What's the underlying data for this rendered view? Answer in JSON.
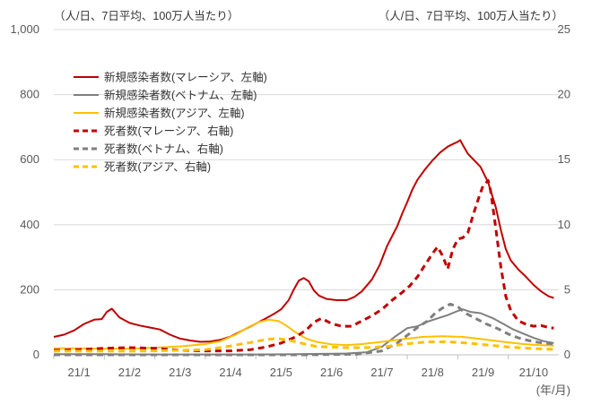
{
  "chart_data": {
    "type": "line",
    "title": "",
    "left_axis_unit": "（人/日、7日平均、100万人当たり）",
    "right_axis_unit": "（人/日、7日平均、100万人当たり）",
    "x_axis_unit": "(年/月)",
    "left_ylim": [
      0,
      1000
    ],
    "right_ylim": [
      0,
      25
    ],
    "left_ticks": [
      "0",
      "200",
      "400",
      "600",
      "800",
      "1,000"
    ],
    "left_tick_values": [
      0,
      200,
      400,
      600,
      800,
      1000
    ],
    "right_ticks": [
      "0",
      "5",
      "10",
      "15",
      "20",
      "25"
    ],
    "right_tick_values": [
      0,
      5,
      10,
      15,
      20,
      25
    ],
    "x_domain": [
      0,
      10
    ],
    "x_ticks": [
      "21/1",
      "21/2",
      "21/3",
      "21/4",
      "21/5",
      "21/6",
      "21/7",
      "21/8",
      "21/9",
      "21/10"
    ],
    "x_tick_values": [
      0,
      1,
      2,
      3,
      4,
      5,
      6,
      7,
      8,
      9
    ],
    "gridlines": true,
    "legend_position": "top-left",
    "series": [
      {
        "name": "新規感染者数(マレーシア、左軸)",
        "axis": "left",
        "color": "#C00000",
        "dash": "solid",
        "points": [
          [
            0,
            55
          ],
          [
            0.2,
            62
          ],
          [
            0.4,
            75
          ],
          [
            0.6,
            95
          ],
          [
            0.8,
            108
          ],
          [
            0.95,
            110
          ],
          [
            1.05,
            132
          ],
          [
            1.15,
            142
          ],
          [
            1.3,
            115
          ],
          [
            1.5,
            98
          ],
          [
            1.7,
            90
          ],
          [
            1.9,
            84
          ],
          [
            2.1,
            78
          ],
          [
            2.3,
            62
          ],
          [
            2.5,
            50
          ],
          [
            2.7,
            44
          ],
          [
            2.9,
            40
          ],
          [
            3.1,
            41
          ],
          [
            3.3,
            46
          ],
          [
            3.5,
            56
          ],
          [
            3.7,
            72
          ],
          [
            3.9,
            88
          ],
          [
            4.05,
            100
          ],
          [
            4.2,
            112
          ],
          [
            4.35,
            125
          ],
          [
            4.5,
            140
          ],
          [
            4.65,
            168
          ],
          [
            4.75,
            200
          ],
          [
            4.85,
            228
          ],
          [
            4.95,
            236
          ],
          [
            5.05,
            226
          ],
          [
            5.15,
            198
          ],
          [
            5.25,
            182
          ],
          [
            5.4,
            172
          ],
          [
            5.6,
            168
          ],
          [
            5.8,
            168
          ],
          [
            5.95,
            178
          ],
          [
            6.1,
            195
          ],
          [
            6.3,
            232
          ],
          [
            6.45,
            275
          ],
          [
            6.6,
            335
          ],
          [
            6.7,
            365
          ],
          [
            6.8,
            395
          ],
          [
            6.9,
            435
          ],
          [
            7.0,
            470
          ],
          [
            7.1,
            508
          ],
          [
            7.2,
            538
          ],
          [
            7.35,
            570
          ],
          [
            7.5,
            598
          ],
          [
            7.65,
            622
          ],
          [
            7.8,
            640
          ],
          [
            7.9,
            648
          ],
          [
            8.0,
            655
          ],
          [
            8.05,
            660
          ],
          [
            8.1,
            645
          ],
          [
            8.2,
            618
          ],
          [
            8.3,
            602
          ],
          [
            8.45,
            578
          ],
          [
            8.6,
            530
          ],
          [
            8.75,
            455
          ],
          [
            8.85,
            385
          ],
          [
            8.95,
            325
          ],
          [
            9.05,
            290
          ],
          [
            9.2,
            262
          ],
          [
            9.35,
            240
          ],
          [
            9.5,
            215
          ],
          [
            9.65,
            195
          ],
          [
            9.8,
            180
          ],
          [
            9.9,
            175
          ]
        ]
      },
      {
        "name": "新規感染者数(ベトナム、左軸)",
        "axis": "left",
        "color": "#7F7F7F",
        "dash": "solid",
        "points": [
          [
            0,
            2
          ],
          [
            1,
            2
          ],
          [
            2,
            1
          ],
          [
            3,
            1
          ],
          [
            4,
            1
          ],
          [
            4.8,
            2
          ],
          [
            5.3,
            3
          ],
          [
            5.8,
            4
          ],
          [
            6.2,
            8
          ],
          [
            6.5,
            25
          ],
          [
            6.75,
            55
          ],
          [
            7.0,
            82
          ],
          [
            7.2,
            88
          ],
          [
            7.4,
            102
          ],
          [
            7.6,
            112
          ],
          [
            7.8,
            122
          ],
          [
            8.0,
            135
          ],
          [
            8.1,
            140
          ],
          [
            8.25,
            132
          ],
          [
            8.45,
            128
          ],
          [
            8.7,
            112
          ],
          [
            8.9,
            95
          ],
          [
            9.1,
            78
          ],
          [
            9.3,
            65
          ],
          [
            9.5,
            52
          ],
          [
            9.7,
            42
          ],
          [
            9.9,
            36
          ]
        ]
      },
      {
        "name": "新規感染者数(アジア、左軸)",
        "axis": "left",
        "color": "#FFC000",
        "dash": "solid",
        "points": [
          [
            0,
            20
          ],
          [
            0.5,
            20
          ],
          [
            1,
            19
          ],
          [
            1.5,
            19
          ],
          [
            2,
            22
          ],
          [
            2.5,
            26
          ],
          [
            3,
            33
          ],
          [
            3.3,
            42
          ],
          [
            3.6,
            62
          ],
          [
            3.85,
            85
          ],
          [
            4.05,
            100
          ],
          [
            4.25,
            108
          ],
          [
            4.45,
            104
          ],
          [
            4.6,
            90
          ],
          [
            4.8,
            68
          ],
          [
            5.0,
            50
          ],
          [
            5.2,
            40
          ],
          [
            5.5,
            32
          ],
          [
            5.8,
            30
          ],
          [
            6.1,
            33
          ],
          [
            6.5,
            40
          ],
          [
            6.9,
            48
          ],
          [
            7.3,
            55
          ],
          [
            7.7,
            57
          ],
          [
            8.1,
            55
          ],
          [
            8.5,
            48
          ],
          [
            8.9,
            40
          ],
          [
            9.3,
            33
          ],
          [
            9.6,
            30
          ],
          [
            9.9,
            28
          ]
        ]
      },
      {
        "name": "死者数(マレーシア、右軸)",
        "axis": "right",
        "color": "#C00000",
        "dash": "dashed",
        "points": [
          [
            0,
            0.35
          ],
          [
            0.5,
            0.4
          ],
          [
            1,
            0.5
          ],
          [
            1.5,
            0.55
          ],
          [
            2,
            0.5
          ],
          [
            2.5,
            0.35
          ],
          [
            3,
            0.3
          ],
          [
            3.5,
            0.3
          ],
          [
            3.9,
            0.4
          ],
          [
            4.2,
            0.6
          ],
          [
            4.5,
            0.9
          ],
          [
            4.8,
            1.4
          ],
          [
            5.0,
            1.9
          ],
          [
            5.15,
            2.5
          ],
          [
            5.3,
            2.8
          ],
          [
            5.5,
            2.4
          ],
          [
            5.7,
            2.2
          ],
          [
            5.9,
            2.2
          ],
          [
            6.1,
            2.6
          ],
          [
            6.3,
            3.0
          ],
          [
            6.5,
            3.5
          ],
          [
            6.7,
            4.2
          ],
          [
            6.9,
            4.8
          ],
          [
            7.05,
            5.3
          ],
          [
            7.2,
            6.0
          ],
          [
            7.35,
            6.9
          ],
          [
            7.5,
            7.8
          ],
          [
            7.6,
            8.3
          ],
          [
            7.7,
            7.6
          ],
          [
            7.8,
            6.6
          ],
          [
            7.9,
            8.1
          ],
          [
            8.0,
            8.9
          ],
          [
            8.1,
            9.0
          ],
          [
            8.2,
            9.4
          ],
          [
            8.3,
            10.7
          ],
          [
            8.4,
            11.9
          ],
          [
            8.5,
            13.0
          ],
          [
            8.6,
            13.4
          ],
          [
            8.65,
            12.6
          ],
          [
            8.75,
            9.8
          ],
          [
            8.85,
            6.8
          ],
          [
            8.95,
            4.5
          ],
          [
            9.05,
            3.4
          ],
          [
            9.2,
            2.6
          ],
          [
            9.35,
            2.35
          ],
          [
            9.5,
            2.2
          ],
          [
            9.65,
            2.25
          ],
          [
            9.8,
            2.1
          ],
          [
            9.9,
            2.05
          ]
        ]
      },
      {
        "name": "死者数(ベトナム、右軸)",
        "axis": "right",
        "color": "#7F7F7F",
        "dash": "dashed",
        "points": [
          [
            0,
            0
          ],
          [
            2,
            0
          ],
          [
            4,
            0
          ],
          [
            5,
            0
          ],
          [
            6,
            0.05
          ],
          [
            6.5,
            0.3
          ],
          [
            6.8,
            0.9
          ],
          [
            7.0,
            1.5
          ],
          [
            7.2,
            2.1
          ],
          [
            7.4,
            2.6
          ],
          [
            7.55,
            3.2
          ],
          [
            7.7,
            3.6
          ],
          [
            7.85,
            3.9
          ],
          [
            8.0,
            3.7
          ],
          [
            8.15,
            3.2
          ],
          [
            8.35,
            2.8
          ],
          [
            8.55,
            2.4
          ],
          [
            8.8,
            2.0
          ],
          [
            9.0,
            1.6
          ],
          [
            9.2,
            1.3
          ],
          [
            9.4,
            1.1
          ],
          [
            9.6,
            0.95
          ],
          [
            9.9,
            0.85
          ]
        ]
      },
      {
        "name": "死者数(アジア、右軸)",
        "axis": "right",
        "color": "#FFC000",
        "dash": "dashed",
        "points": [
          [
            0,
            0.28
          ],
          [
            0.5,
            0.28
          ],
          [
            1,
            0.28
          ],
          [
            1.5,
            0.28
          ],
          [
            2,
            0.3
          ],
          [
            2.5,
            0.35
          ],
          [
            3,
            0.4
          ],
          [
            3.3,
            0.55
          ],
          [
            3.6,
            0.75
          ],
          [
            3.9,
            0.95
          ],
          [
            4.1,
            1.1
          ],
          [
            4.25,
            1.2
          ],
          [
            4.45,
            1.25
          ],
          [
            4.6,
            1.15
          ],
          [
            4.8,
            1.0
          ],
          [
            5.0,
            0.8
          ],
          [
            5.2,
            0.65
          ],
          [
            5.5,
            0.6
          ],
          [
            5.8,
            0.55
          ],
          [
            6.2,
            0.55
          ],
          [
            6.6,
            0.65
          ],
          [
            7.0,
            0.85
          ],
          [
            7.4,
            1.0
          ],
          [
            7.8,
            1.0
          ],
          [
            8.2,
            0.9
          ],
          [
            8.6,
            0.75
          ],
          [
            9.0,
            0.6
          ],
          [
            9.4,
            0.5
          ],
          [
            9.7,
            0.45
          ],
          [
            9.9,
            0.42
          ]
        ]
      }
    ]
  }
}
